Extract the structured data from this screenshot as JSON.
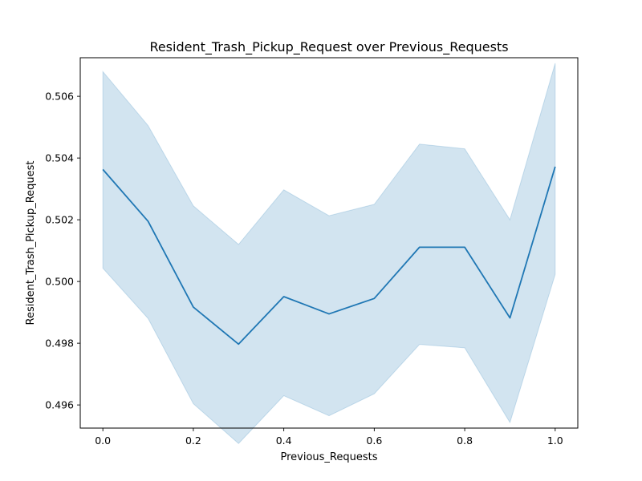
{
  "chart_data": {
    "type": "line",
    "title": "Resident_Trash_Pickup_Request over Previous_Requests",
    "xlabel": "Previous_Requests",
    "ylabel": "Resident_Trash_Pickup_Request",
    "xlim": [
      -0.05,
      1.05
    ],
    "ylim": [
      0.49525,
      0.50725
    ],
    "xticks": [
      {
        "value": 0.0,
        "label": "0.0"
      },
      {
        "value": 0.2,
        "label": "0.2"
      },
      {
        "value": 0.4,
        "label": "0.4"
      },
      {
        "value": 0.6,
        "label": "0.6"
      },
      {
        "value": 0.8,
        "label": "0.8"
      },
      {
        "value": 1.0,
        "label": "1.0"
      }
    ],
    "yticks": [
      {
        "value": 0.496,
        "label": "0.496"
      },
      {
        "value": 0.498,
        "label": "0.498"
      },
      {
        "value": 0.5,
        "label": "0.500"
      },
      {
        "value": 0.502,
        "label": "0.502"
      },
      {
        "value": 0.504,
        "label": "0.504"
      },
      {
        "value": 0.506,
        "label": "0.506"
      }
    ],
    "grid": false,
    "series": [
      {
        "x": [
          0.0,
          0.1,
          0.2,
          0.3,
          0.4,
          0.5,
          0.6,
          0.7,
          0.8,
          0.9,
          1.0
        ],
        "y": [
          0.50363,
          0.50195,
          0.49917,
          0.49797,
          0.49951,
          0.49895,
          0.49945,
          0.50111,
          0.50111,
          0.49882,
          0.50372
        ],
        "ci_lower": [
          0.50043,
          0.4988,
          0.49604,
          0.49475,
          0.4963,
          0.49565,
          0.49636,
          0.49796,
          0.49785,
          0.49543,
          0.50023
        ],
        "ci_upper": [
          0.5068,
          0.50505,
          0.50245,
          0.5012,
          0.50297,
          0.50213,
          0.5025,
          0.50445,
          0.5043,
          0.502,
          0.50707
        ],
        "color": "#1f77b4",
        "band_color": "#1f77b4"
      }
    ]
  }
}
